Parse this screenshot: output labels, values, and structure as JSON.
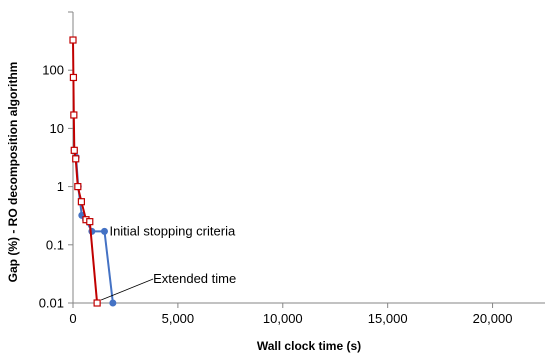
{
  "chart_data": {
    "type": "line",
    "title": "",
    "xlabel": "Wall clock time (s)",
    "ylabel": "Gap (%) - RO decomposition algorithm",
    "xlim": [
      0,
      22500
    ],
    "ylim": [
      0.01,
      1000
    ],
    "yscale": "log",
    "grid": false,
    "x_ticks": [
      0,
      5000,
      10000,
      15000,
      20000
    ],
    "x_tick_labels": [
      "0",
      "5,000",
      "10,000",
      "15,000",
      "20,000"
    ],
    "y_ticks": [
      0.01,
      0.1,
      1,
      10,
      100
    ],
    "y_tick_labels": [
      "0.01",
      "0.1",
      "1",
      "10",
      "100"
    ],
    "series": [
      {
        "color": "#4472C4",
        "marker": "filled-circle",
        "x": [
          60,
          150,
          250,
          420,
          600,
          900,
          1500,
          1900
        ],
        "y": [
          4.2,
          3.2,
          1.0,
          0.32,
          0.27,
          0.17,
          0.17,
          0.01
        ]
      },
      {
        "color": "#C00000",
        "marker": "hollow-square",
        "x": [
          0,
          20,
          40,
          60,
          130,
          230,
          400,
          620,
          800,
          1150
        ],
        "y": [
          330,
          75,
          17,
          4.2,
          3.0,
          1.0,
          0.55,
          0.27,
          0.25,
          0.01
        ]
      }
    ],
    "annotations": [
      {
        "text": "Initial stopping criteria",
        "x": 1500,
        "y": 0.17
      },
      {
        "text": "Extended time",
        "x": 1150,
        "y": 0.01
      }
    ]
  }
}
